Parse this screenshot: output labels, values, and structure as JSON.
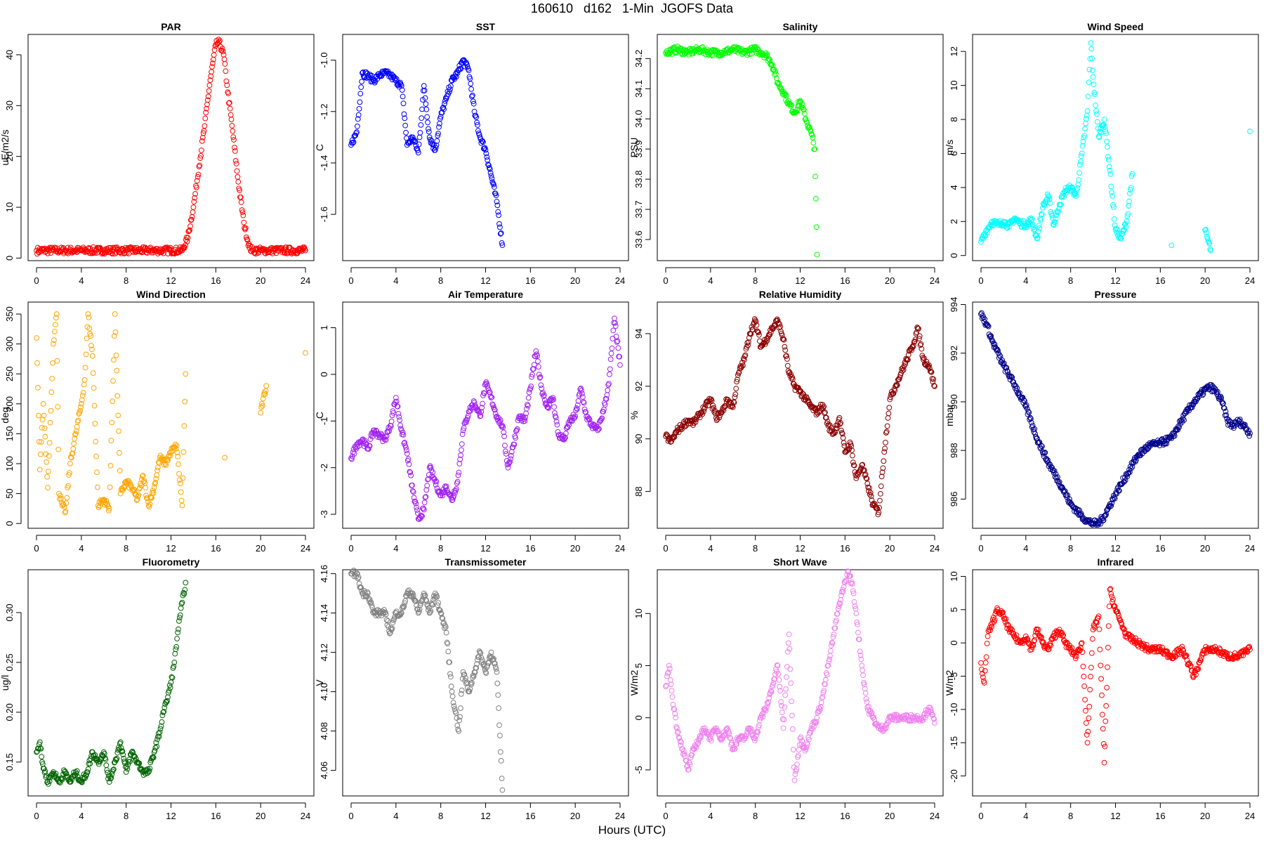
{
  "figure": {
    "title": "160610   d162   1-Min  JGOFS Data",
    "xlabel": "Hours (UTC)"
  },
  "chart_data": [
    {
      "title": "PAR",
      "type": "scatter",
      "ylabel": "uE/m2/s",
      "color": "#FF0000",
      "xticks": [
        0,
        4,
        8,
        12,
        16,
        20,
        24
      ],
      "yticks": [
        0,
        10,
        20,
        30,
        40
      ],
      "ylim": [
        -0.5,
        44
      ],
      "x": [
        0,
        2,
        4,
        6,
        8,
        10,
        12,
        13,
        13.5,
        14,
        14.5,
        15,
        15.5,
        16,
        16.3,
        16.7,
        17,
        17.5,
        18,
        18.5,
        19,
        19.3,
        20,
        22,
        24
      ],
      "y": [
        1.5,
        1.5,
        1.5,
        1.5,
        1.5,
        1.5,
        1.5,
        1.5,
        4,
        10,
        18,
        26,
        35,
        42,
        42.5,
        40,
        34,
        25,
        15,
        7,
        2,
        1.5,
        1.5,
        1.5,
        1.5
      ]
    },
    {
      "title": "SST",
      "type": "scatter",
      "ylabel": "C",
      "color": "#0000FF",
      "xticks": [
        0,
        4,
        8,
        12,
        16,
        20,
        24
      ],
      "yticks": [
        -1.6,
        -1.4,
        -1.2,
        -1.0
      ],
      "ylim": [
        -1.78,
        -0.9
      ],
      "x": [
        0,
        0.5,
        1,
        1.5,
        2,
        2.5,
        3,
        3.5,
        4,
        4.5,
        5,
        5.5,
        6,
        6.5,
        7,
        7.5,
        8,
        8.5,
        9,
        9.5,
        10,
        10.5,
        11,
        11.5,
        12,
        12.5,
        13,
        13.5
      ],
      "y": [
        -1.33,
        -1.28,
        -1.05,
        -1.06,
        -1.08,
        -1.06,
        -1.05,
        -1.06,
        -1.08,
        -1.1,
        -1.33,
        -1.3,
        -1.36,
        -1.1,
        -1.3,
        -1.35,
        -1.22,
        -1.15,
        -1.08,
        -1.05,
        -1.0,
        -1.04,
        -1.2,
        -1.3,
        -1.35,
        -1.45,
        -1.55,
        -1.72
      ]
    },
    {
      "title": "Salinity",
      "type": "scatter",
      "ylabel": "PSU",
      "color": "#00FF00",
      "xticks": [
        0,
        4,
        8,
        12,
        16,
        20,
        24
      ],
      "yticks": [
        33.6,
        33.7,
        33.8,
        33.9,
        34.0,
        34.1,
        34.2
      ],
      "ylim": [
        33.53,
        34.28
      ],
      "x": [
        0,
        1,
        2,
        3,
        4,
        5,
        6,
        7,
        8,
        8.5,
        9,
        9.5,
        10,
        10.5,
        11,
        11.5,
        12,
        12.5,
        13,
        13.3,
        13.5
      ],
      "y": [
        34.22,
        34.23,
        34.22,
        34.23,
        34.22,
        34.22,
        34.23,
        34.22,
        34.23,
        34.22,
        34.21,
        34.18,
        34.12,
        34.09,
        34.05,
        34.02,
        34.06,
        34.0,
        33.95,
        33.9,
        33.55
      ]
    },
    {
      "title": "Wind Speed",
      "type": "scatter",
      "ylabel": "m/s",
      "color": "#00FFFF",
      "xticks": [
        0,
        4,
        8,
        12,
        16,
        20,
        24
      ],
      "yticks": [
        0,
        2,
        4,
        6,
        8,
        10,
        12
      ],
      "ylim": [
        -0.3,
        13
      ],
      "x": [
        0,
        0.5,
        1,
        1.5,
        2,
        2.5,
        3,
        3.5,
        4,
        4.5,
        5,
        5.5,
        6,
        6.5,
        7,
        7.5,
        8,
        8.5,
        9,
        9.5,
        9.8,
        10,
        10.5,
        11,
        11.5,
        12,
        12.5,
        13,
        13.5,
        17,
        20,
        20.5,
        24
      ],
      "y": [
        0.8,
        1.5,
        2.0,
        1.8,
        2.0,
        1.7,
        2.2,
        1.9,
        1.8,
        2.1,
        1.0,
        2.8,
        3.5,
        1.8,
        3.0,
        3.8,
        4.0,
        3.5,
        6.0,
        8.5,
        12.5,
        10.5,
        7.0,
        8.0,
        5.0,
        1.5,
        1.0,
        2.0,
        4.8,
        0.6,
        1.5,
        0.3,
        7.3
      ]
    },
    {
      "title": "Wind Direction",
      "type": "scatter",
      "ylabel": "deg",
      "color": "#FFA500",
      "xticks": [
        0,
        4,
        8,
        12,
        16,
        20,
        24
      ],
      "yticks": [
        0,
        50,
        100,
        150,
        200,
        250,
        300,
        350
      ],
      "ylim": [
        -8,
        370
      ],
      "x": [
        0,
        0.3,
        0.6,
        1,
        1.5,
        1.8,
        2,
        2.3,
        2.6,
        3,
        3.5,
        4,
        4.3,
        4.6,
        5,
        5.5,
        6,
        6.5,
        7,
        7.5,
        8,
        8.5,
        9,
        9.5,
        10,
        10.5,
        11,
        11.5,
        12,
        12.5,
        13,
        13.3,
        16.8,
        20,
        20.5,
        24
      ],
      "y": [
        310,
        90,
        200,
        60,
        300,
        350,
        50,
        30,
        20,
        100,
        150,
        200,
        240,
        350,
        280,
        30,
        40,
        25,
        350,
        50,
        70,
        60,
        40,
        80,
        30,
        60,
        110,
        100,
        120,
        130,
        30,
        250,
        110,
        185,
        230,
        285
      ]
    },
    {
      "title": "Air Temperature",
      "type": "scatter",
      "ylabel": "C",
      "color": "#A020F0",
      "xticks": [
        0,
        4,
        8,
        12,
        16,
        20,
        24
      ],
      "yticks": [
        -3,
        -2,
        -1,
        0,
        1
      ],
      "ylim": [
        -3.3,
        1.55
      ],
      "x": [
        0,
        0.5,
        1,
        1.5,
        2,
        2.5,
        3,
        3.5,
        4,
        4.5,
        5,
        5.5,
        6,
        6.5,
        7,
        7.5,
        8,
        8.5,
        9,
        9.5,
        10,
        10.5,
        11,
        11.5,
        12,
        12.5,
        13,
        13.5,
        14,
        14.5,
        15,
        15.5,
        16,
        16.5,
        17,
        17.5,
        18,
        18.5,
        19,
        19.5,
        20,
        20.5,
        21,
        21.5,
        22,
        22.5,
        23,
        23.5,
        24
      ],
      "y": [
        -1.8,
        -1.5,
        -1.4,
        -1.6,
        -1.2,
        -1.3,
        -1.4,
        -1.1,
        -0.5,
        -1.2,
        -1.7,
        -2.5,
        -3.1,
        -2.9,
        -2.0,
        -2.3,
        -2.6,
        -2.4,
        -2.7,
        -2.3,
        -1.2,
        -0.8,
        -0.6,
        -0.9,
        -0.2,
        -0.5,
        -0.9,
        -1.1,
        -2.0,
        -1.5,
        -0.9,
        -1.0,
        -0.3,
        0.5,
        -0.3,
        -0.7,
        -0.5,
        -1.3,
        -1.4,
        -1.0,
        -0.9,
        -0.3,
        -0.9,
        -1.1,
        -1.2,
        -0.8,
        -0.2,
        1.2,
        0.2
      ]
    },
    {
      "title": "Relative Humidity",
      "type": "scatter",
      "ylabel": "%",
      "color": "#8B0000",
      "xticks": [
        0,
        4,
        8,
        12,
        16,
        20,
        24
      ],
      "yticks": [
        88,
        90,
        92,
        94
      ],
      "ylim": [
        86.6,
        95.2
      ],
      "x": [
        0,
        0.5,
        1,
        1.5,
        2,
        2.5,
        3,
        3.5,
        4,
        4.5,
        5,
        5.5,
        6,
        6.5,
        7,
        7.5,
        8,
        8.5,
        9,
        9.5,
        10,
        10.5,
        11,
        11.5,
        12,
        12.5,
        13,
        13.5,
        14,
        14.5,
        15,
        15.5,
        16,
        16.5,
        17,
        17.5,
        18,
        18.5,
        19,
        19.5,
        20,
        20.5,
        21,
        21.5,
        22,
        22.5,
        23,
        23.5,
        24
      ],
      "y": [
        90.1,
        89.9,
        90.3,
        90.5,
        90.7,
        90.6,
        90.9,
        91.2,
        91.5,
        90.8,
        91.0,
        91.5,
        91.2,
        92.5,
        93.0,
        94.0,
        94.5,
        93.5,
        93.8,
        94.2,
        94.5,
        93.8,
        92.5,
        92.0,
        91.8,
        91.5,
        91.2,
        91.0,
        91.3,
        90.5,
        90.2,
        90.8,
        89.5,
        89.8,
        88.5,
        89.0,
        88.3,
        87.5,
        87.2,
        89.5,
        91.5,
        92.0,
        92.5,
        93.0,
        93.5,
        94.2,
        93.0,
        92.8,
        92.0
      ]
    },
    {
      "title": "Pressure",
      "type": "scatter",
      "ylabel": "mbar",
      "color": "#00008B",
      "xticks": [
        0,
        4,
        8,
        12,
        16,
        20,
        24
      ],
      "yticks": [
        986,
        988,
        990,
        992,
        994
      ],
      "ylim": [
        984.8,
        994.1
      ],
      "x": [
        0,
        0.5,
        1,
        2,
        3,
        4,
        5,
        6,
        7,
        8,
        9,
        9.5,
        10,
        10.5,
        11,
        12,
        13,
        14,
        15,
        16,
        17,
        18,
        19,
        20,
        20.5,
        21,
        21.5,
        22,
        22.5,
        23,
        23.5,
        24
      ],
      "y": [
        993.6,
        993.2,
        992.5,
        991.5,
        990.7,
        989.8,
        988.5,
        987.5,
        986.7,
        985.8,
        985.3,
        985.1,
        985.0,
        985.0,
        985.3,
        986.2,
        987.0,
        987.8,
        988.2,
        988.3,
        988.5,
        989.3,
        990.0,
        990.5,
        990.6,
        990.4,
        990.0,
        989.2,
        989.0,
        989.2,
        989.0,
        988.7
      ]
    },
    {
      "title": "Fluorometry",
      "type": "scatter",
      "ylabel": "ug/l",
      "color": "#006400",
      "xticks": [
        0,
        4,
        8,
        12,
        16,
        20,
        24
      ],
      "yticks": [
        0.15,
        0.2,
        0.25,
        0.3
      ],
      "ylim": [
        0.116,
        0.343
      ],
      "x": [
        0,
        0.3,
        0.5,
        1,
        1.5,
        2,
        2.5,
        3,
        3.5,
        4,
        4.5,
        5,
        5.5,
        6,
        6.5,
        7,
        7.5,
        8,
        8.5,
        9,
        9.5,
        10,
        10.5,
        11,
        11.3,
        11.6,
        12,
        12.3,
        12.6,
        13,
        13.3
      ],
      "y": [
        0.16,
        0.17,
        0.15,
        0.13,
        0.14,
        0.13,
        0.14,
        0.13,
        0.14,
        0.13,
        0.14,
        0.16,
        0.15,
        0.16,
        0.13,
        0.15,
        0.17,
        0.14,
        0.16,
        0.15,
        0.14,
        0.14,
        0.16,
        0.18,
        0.2,
        0.21,
        0.23,
        0.25,
        0.28,
        0.31,
        0.33
      ]
    },
    {
      "title": "Transmissometer",
      "type": "scatter",
      "ylabel": "V",
      "color": "#808080",
      "xticks": [
        0,
        4,
        8,
        12,
        16,
        20,
        24
      ],
      "yticks": [
        4.06,
        4.08,
        4.1,
        4.12,
        4.14,
        4.16
      ],
      "ylim": [
        4.047,
        4.162
      ],
      "x": [
        0,
        0.5,
        1,
        1.5,
        2,
        2.5,
        3,
        3.5,
        4,
        4.5,
        5,
        5.5,
        6,
        6.5,
        7,
        7.5,
        8,
        8.5,
        9,
        9.3,
        9.6,
        10,
        10.5,
        11,
        11.5,
        12,
        12.5,
        13,
        13.5
      ],
      "y": [
        4.16,
        4.16,
        4.15,
        4.15,
        4.14,
        4.14,
        4.14,
        4.13,
        4.14,
        4.14,
        4.15,
        4.15,
        4.14,
        4.15,
        4.14,
        4.15,
        4.14,
        4.13,
        4.1,
        4.09,
        4.08,
        4.11,
        4.1,
        4.11,
        4.12,
        4.11,
        4.12,
        4.11,
        4.05
      ]
    },
    {
      "title": "Short Wave",
      "type": "scatter",
      "ylabel": "W/m2",
      "color": "#EE82EE",
      "xticks": [
        0,
        4,
        8,
        12,
        16,
        20,
        24
      ],
      "yticks": [
        -5,
        0,
        5,
        10
      ],
      "ylim": [
        -7.5,
        14.2
      ],
      "x": [
        0,
        0.3,
        0.6,
        1,
        1.5,
        2,
        2.5,
        3,
        3.5,
        4,
        4.5,
        5,
        5.5,
        6,
        6.5,
        7,
        7.5,
        8,
        8.5,
        9,
        9.5,
        10,
        10.5,
        11,
        11.5,
        12,
        12.5,
        13,
        13.5,
        14,
        14.5,
        15,
        15.5,
        16,
        16.3,
        16.6,
        17,
        17.5,
        18,
        18.5,
        19,
        19.5,
        20,
        21,
        22,
        23,
        23.5,
        24
      ],
      "y": [
        3,
        5,
        2,
        -1,
        -3,
        -5,
        -3,
        -2,
        -1,
        -2,
        -1,
        -2,
        -1,
        -3,
        -2,
        -2,
        -1,
        -2,
        0,
        1,
        3,
        5,
        -1,
        8,
        -6,
        -2,
        -3,
        -1,
        0,
        2,
        5,
        8,
        11,
        13,
        14,
        13,
        10,
        5,
        1,
        0,
        -1,
        -1,
        0,
        0,
        0,
        0,
        1,
        -0.5
      ]
    },
    {
      "title": "Infrared",
      "type": "scatter",
      "ylabel": "W/m2",
      "color": "#FF0000",
      "xticks": [
        0,
        4,
        8,
        12,
        16,
        20,
        24
      ],
      "yticks": [
        -20,
        -15,
        -10,
        -5,
        0,
        5,
        10
      ],
      "ylim": [
        -23,
        11
      ],
      "x": [
        0,
        0.3,
        0.6,
        1,
        1.5,
        2,
        2.5,
        3,
        3.5,
        4,
        4.5,
        5,
        5.5,
        6,
        6.5,
        7,
        7.5,
        8,
        8.5,
        9,
        9.5,
        10,
        10.5,
        11,
        11.5,
        12,
        12.5,
        13,
        14,
        15,
        16,
        17,
        18,
        19,
        20,
        21,
        22,
        23,
        24
      ],
      "y": [
        -3,
        -6,
        1,
        3,
        5,
        4,
        2,
        1,
        0,
        1,
        -1,
        2,
        0,
        -1,
        1,
        2,
        0,
        -1,
        -2,
        0,
        -15,
        2,
        4,
        -18,
        8,
        5,
        3,
        1,
        0,
        -1,
        -1,
        -2,
        -1,
        -5,
        -1,
        -1,
        -2,
        -2,
        -1
      ]
    }
  ]
}
